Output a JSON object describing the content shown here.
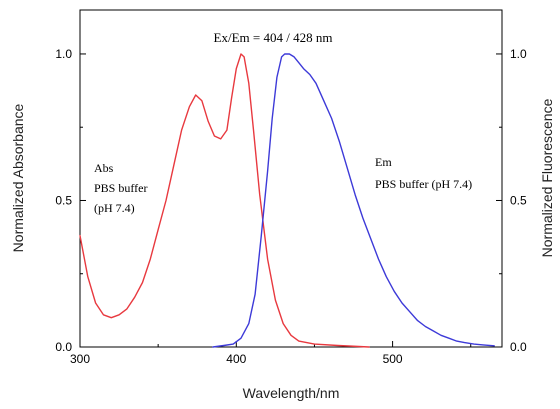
{
  "chart_data": {
    "type": "line",
    "title": "Ex/Em = 404 / 428 nm",
    "xlabel": "Wavelength/nm",
    "ylabel_left": "Normalized Absorbance",
    "ylabel_right": "Normalized Fluorescence",
    "xlim": [
      300,
      570
    ],
    "ylim": [
      0,
      1.15
    ],
    "x_ticks": [
      300,
      400,
      500
    ],
    "x_tick_labels": [
      "300",
      "400",
      "500"
    ],
    "y_ticks": [
      0,
      0.5,
      1.0
    ],
    "y_tick_labels_left": [
      "0.0",
      "0.5",
      "1.0"
    ],
    "y_tick_labels_right": [
      "0.0",
      "0.5",
      "1.0"
    ],
    "grid": false,
    "annotations": {
      "abs": [
        "Abs",
        "PBS buffer",
        "(pH 7.4)"
      ],
      "em": [
        "Em",
        "PBS buffer (pH 7.4)"
      ]
    },
    "series": [
      {
        "color": "#e8393f",
        "axis": "left",
        "points": [
          [
            300,
            0.38
          ],
          [
            305,
            0.24
          ],
          [
            310,
            0.15
          ],
          [
            315,
            0.11
          ],
          [
            320,
            0.1
          ],
          [
            325,
            0.11
          ],
          [
            330,
            0.13
          ],
          [
            335,
            0.17
          ],
          [
            340,
            0.22
          ],
          [
            345,
            0.3
          ],
          [
            350,
            0.4
          ],
          [
            355,
            0.5
          ],
          [
            360,
            0.62
          ],
          [
            365,
            0.74
          ],
          [
            370,
            0.82
          ],
          [
            374,
            0.86
          ],
          [
            378,
            0.84
          ],
          [
            382,
            0.77
          ],
          [
            386,
            0.72
          ],
          [
            390,
            0.71
          ],
          [
            394,
            0.74
          ],
          [
            397,
            0.85
          ],
          [
            400,
            0.95
          ],
          [
            403,
            1.0
          ],
          [
            405,
            0.99
          ],
          [
            408,
            0.9
          ],
          [
            411,
            0.74
          ],
          [
            415,
            0.52
          ],
          [
            420,
            0.3
          ],
          [
            425,
            0.16
          ],
          [
            430,
            0.08
          ],
          [
            435,
            0.04
          ],
          [
            440,
            0.02
          ],
          [
            450,
            0.01
          ],
          [
            465,
            0.005
          ],
          [
            485,
            0.0
          ]
        ]
      },
      {
        "color": "#3d3ad8",
        "axis": "right",
        "points": [
          [
            385,
            0.0
          ],
          [
            392,
            0.005
          ],
          [
            398,
            0.01
          ],
          [
            403,
            0.03
          ],
          [
            408,
            0.08
          ],
          [
            412,
            0.18
          ],
          [
            416,
            0.38
          ],
          [
            420,
            0.6
          ],
          [
            423,
            0.78
          ],
          [
            426,
            0.92
          ],
          [
            429,
            0.99
          ],
          [
            431,
            1.0
          ],
          [
            434,
            1.0
          ],
          [
            437,
            0.99
          ],
          [
            440,
            0.97
          ],
          [
            443,
            0.95
          ],
          [
            447,
            0.93
          ],
          [
            451,
            0.9
          ],
          [
            456,
            0.84
          ],
          [
            461,
            0.78
          ],
          [
            466,
            0.7
          ],
          [
            471,
            0.61
          ],
          [
            476,
            0.52
          ],
          [
            481,
            0.44
          ],
          [
            486,
            0.37
          ],
          [
            491,
            0.3
          ],
          [
            496,
            0.24
          ],
          [
            501,
            0.19
          ],
          [
            506,
            0.15
          ],
          [
            511,
            0.12
          ],
          [
            516,
            0.09
          ],
          [
            521,
            0.07
          ],
          [
            526,
            0.055
          ],
          [
            531,
            0.04
          ],
          [
            536,
            0.03
          ],
          [
            541,
            0.02
          ],
          [
            546,
            0.015
          ],
          [
            552,
            0.01
          ],
          [
            558,
            0.007
          ],
          [
            565,
            0.004
          ]
        ]
      }
    ]
  }
}
